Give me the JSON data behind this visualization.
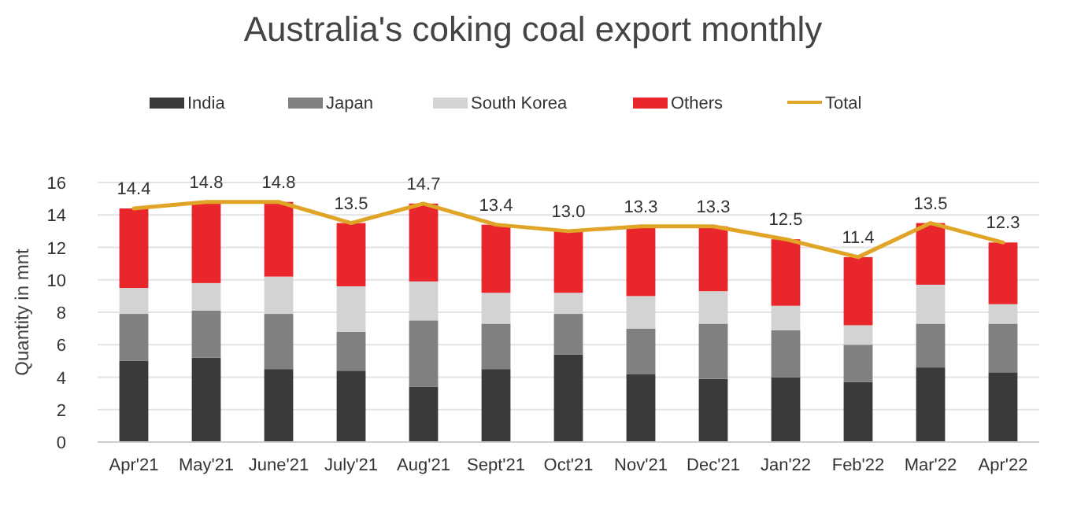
{
  "chart_data": {
    "type": "bar",
    "title": "Australia's coking coal export monthly",
    "ylabel": "Quantity in mnt",
    "stacked": true,
    "grid": "y",
    "legend": "top",
    "categories": [
      "Apr'21",
      "May'21",
      "June'21",
      "July'21",
      "Aug'21",
      "Sept'21",
      "Oct'21",
      "Nov'21",
      "Dec'21",
      "Jan'22",
      "Feb'22",
      "Mar'22",
      "Apr'22"
    ],
    "ylim": [
      0,
      16
    ],
    "yticks": [
      0,
      2,
      4,
      6,
      8,
      10,
      12,
      14,
      16
    ],
    "series": [
      {
        "name": "India",
        "color": "#3a3a3a",
        "values": [
          5.0,
          5.2,
          4.5,
          4.4,
          3.4,
          4.5,
          5.4,
          4.2,
          3.9,
          4.0,
          3.7,
          4.6,
          4.3
        ]
      },
      {
        "name": "Japan",
        "color": "#808080",
        "values": [
          2.9,
          2.9,
          3.4,
          2.4,
          4.1,
          2.8,
          2.5,
          2.8,
          3.4,
          2.9,
          2.3,
          2.7,
          3.0
        ]
      },
      {
        "name": "South Korea",
        "color": "#d3d3d3",
        "values": [
          1.6,
          1.7,
          2.3,
          2.8,
          2.4,
          1.9,
          1.3,
          2.0,
          2.0,
          1.5,
          1.2,
          2.4,
          1.2
        ]
      },
      {
        "name": "Others",
        "color": "#e8262b",
        "values": [
          4.9,
          5.0,
          4.6,
          3.9,
          4.8,
          4.2,
          3.8,
          4.3,
          4.0,
          4.1,
          4.2,
          3.8,
          3.8
        ]
      },
      {
        "name": "Total",
        "type": "line",
        "color": "#e0a526",
        "values": [
          14.4,
          14.8,
          14.8,
          13.5,
          14.7,
          13.4,
          13.0,
          13.3,
          13.3,
          12.5,
          11.4,
          13.5,
          12.3
        ],
        "value_labels": [
          "14.4",
          "14.8",
          "14.8",
          "13.5",
          "14.7",
          "13.4",
          "13.0",
          "13.3",
          "13.3",
          "12.5",
          "11.4",
          "13.5",
          "12.3"
        ]
      }
    ]
  }
}
